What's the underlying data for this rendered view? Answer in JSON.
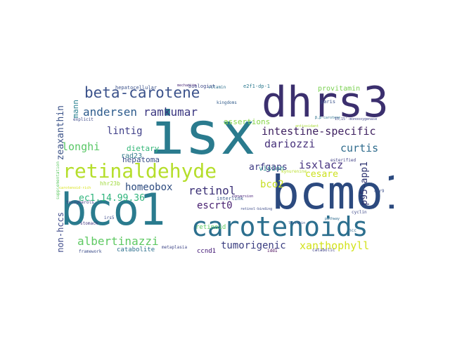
{
  "word_cloud": {
    "words": [
      {
        "text": "isx",
        "color": "#2a7b8e"
      },
      {
        "text": "dhrs3",
        "color": "#3b2f6e"
      },
      {
        "text": "bcmo1",
        "color": "#2c4a7f"
      },
      {
        "text": "bco1",
        "color": "#2a7b8e"
      },
      {
        "text": "carotenoids",
        "color": "#2c6f8e"
      },
      {
        "text": "retinaldehyde",
        "color": "#b5de2b"
      },
      {
        "text": "beta-carotene",
        "color": "#3b528b"
      },
      {
        "text": "intestine-specific",
        "color": "#3d1f5f"
      },
      {
        "text": "albertinazzi",
        "color": "#5ec962"
      },
      {
        "text": "xanthophyll",
        "color": "#d2e21b"
      },
      {
        "text": "tumorigenic",
        "color": "#3a3d80"
      },
      {
        "text": "homeobox",
        "color": "#2d4b7f"
      },
      {
        "text": "ec1.14.99.36",
        "color": "#2fb47c"
      },
      {
        "text": "retinol",
        "color": "#3b3076"
      },
      {
        "text": "longhi",
        "color": "#58c765"
      },
      {
        "text": "lintig",
        "color": "#3f3f88"
      },
      {
        "text": "andersen",
        "color": "#2d5b8c"
      },
      {
        "text": "ramkumar",
        "color": "#3a3680"
      },
      {
        "text": "dariozzi",
        "color": "#47317b"
      },
      {
        "text": "isxlacz",
        "color": "#46327f"
      },
      {
        "text": "curtis",
        "color": "#2e6b8c"
      },
      {
        "text": "cesare",
        "color": "#cde11d"
      },
      {
        "text": "bco2",
        "color": "#c6df22"
      },
      {
        "text": "escrt0",
        "color": "#482071"
      },
      {
        "text": "arfgaps",
        "color": "#3f3c84"
      },
      {
        "text": "zeaxanthin",
        "color": "#3c5388"
      },
      {
        "text": "non-hccs",
        "color": "#3e4a89"
      },
      {
        "text": "p95-app1",
        "color": "#2a2f6e"
      },
      {
        "text": "dietary",
        "color": "#35b779"
      },
      {
        "text": "hepatoma",
        "color": "#3c4f8a"
      },
      {
        "text": "assertions",
        "color": "#87d549"
      },
      {
        "text": "provitamin",
        "color": "#7ad151"
      },
      {
        "text": "rad23",
        "color": "#3a7f8e"
      },
      {
        "text": "catabolite",
        "color": "#2d708e"
      },
      {
        "text": "ccnd1",
        "color": "#3b0f70"
      },
      {
        "text": "retinoid",
        "color": "#5ec962"
      },
      {
        "text": "vision",
        "color": "#2b8c8c"
      },
      {
        "text": "mann",
        "color": "#27808e"
      },
      {
        "text": "hepatocellular",
        "color": "#3b528b"
      },
      {
        "text": "biologist",
        "color": "#3e4a89"
      },
      {
        "text": "hhr23b",
        "color": "#9fda3a"
      },
      {
        "text": "interlink",
        "color": "#38598c"
      },
      {
        "text": "e2f1-dp-1",
        "color": "#2a788e"
      },
      {
        "text": "paris",
        "color": "#3b528b"
      },
      {
        "text": "irs5",
        "color": "#3a4a8a"
      },
      {
        "text": "stomach",
        "color": "#453781"
      },
      {
        "text": "supplementation",
        "color": "#5ec962"
      },
      {
        "text": "tocopherols",
        "color": "#433e85"
      },
      {
        "text": "framework",
        "color": "#3d4e8a"
      },
      {
        "text": "metaplasia",
        "color": "#3f4788"
      },
      {
        "text": "kingdoms",
        "color": "#355f8d"
      },
      {
        "text": "vitamin",
        "color": "#2d708e"
      },
      {
        "text": "catabolic",
        "color": "#414487"
      },
      {
        "text": "conversion",
        "color": "#3b0f70"
      },
      {
        "text": "mechanism",
        "color": "#482878"
      },
      {
        "text": "explicit",
        "color": "#3e4989"
      },
      {
        "text": "idd1",
        "color": "#440154"
      },
      {
        "text": "hcc",
        "color": "#31688e"
      },
      {
        "text": "β,β-carotene",
        "color": "#2c728e"
      },
      {
        "text": "15,15'-monooxygenase",
        "color": "#404688"
      },
      {
        "text": "retinol-binding",
        "color": "#3e4c8a"
      },
      {
        "text": "pathway",
        "color": "#2f6c8e"
      },
      {
        "text": "esterified",
        "color": "#414287"
      },
      {
        "text": "lecithin",
        "color": "#3a548c"
      },
      {
        "text": "cyclin",
        "color": "#3e4989"
      },
      {
        "text": "ccr9",
        "color": "#3c508b"
      },
      {
        "text": "antioxidant",
        "color": "#a8db34"
      },
      {
        "text": "carotenoid-rich",
        "color": "#d8e219"
      },
      {
        "text": "kynurenine",
        "color": "#b8de29"
      }
    ]
  }
}
